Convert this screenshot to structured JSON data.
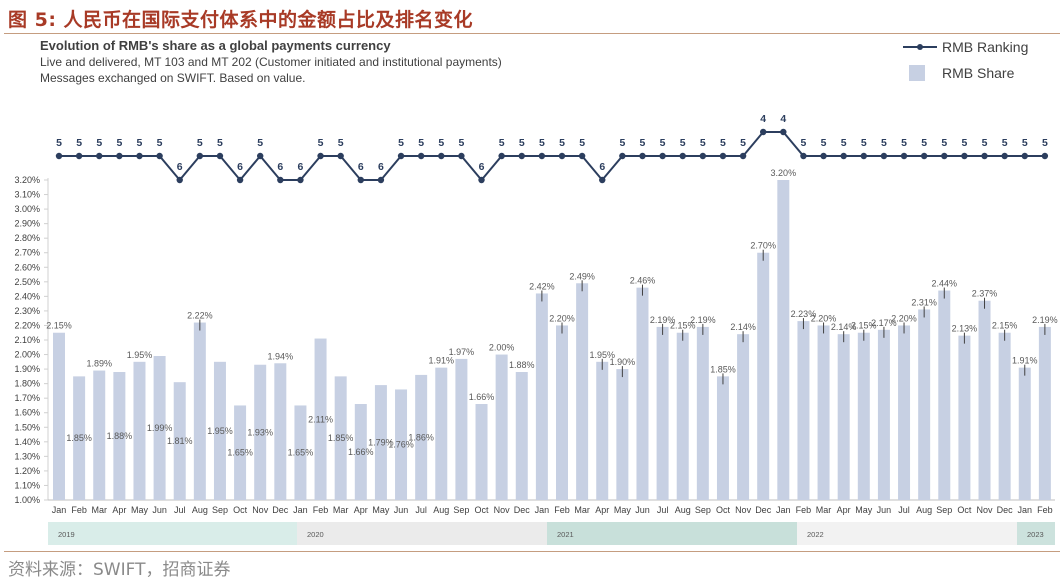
{
  "header": {
    "caption": "图 5: 人民币在国际支付体系中的金额占比及排名变化",
    "color": "#a83a26"
  },
  "chart_data": {
    "type": "bar",
    "title": "Evolution of RMB's share as a global payments currency",
    "subtitle": [
      "Live and delivered, MT 103 and MT 202 (Customer initiated and institutional payments)",
      "Messages exchanged on SWIFT. Based on value."
    ],
    "categories": [
      "Jan",
      "Feb",
      "Mar",
      "Apr",
      "May",
      "Jun",
      "Jul",
      "Aug",
      "Sep",
      "Oct",
      "Nov",
      "Dec",
      "Jan",
      "Feb",
      "Mar",
      "Apr",
      "May",
      "Jun",
      "Jul",
      "Aug",
      "Sep",
      "Oct",
      "Nov",
      "Dec",
      "Jan",
      "Feb",
      "Mar",
      "Apr",
      "May",
      "Jun",
      "Jul",
      "Aug",
      "Sep",
      "Oct",
      "Nov",
      "Dec",
      "Jan",
      "Feb",
      "Mar",
      "Apr",
      "May",
      "Jun",
      "Jul",
      "Aug",
      "Sep",
      "Oct",
      "Nov",
      "Dec",
      "Jan",
      "Feb"
    ],
    "years": [
      {
        "label": "2019",
        "color": "#d9ede9"
      },
      {
        "label": "2020",
        "color": "#ebebeb"
      },
      {
        "label": "2021",
        "color": "#c8e0da"
      },
      {
        "label": "2022",
        "color": "#f2f2f2"
      },
      {
        "label": "2023",
        "color": "#cce2dd"
      }
    ],
    "yticks": [
      "1.00%",
      "1.10%",
      "1.20%",
      "1.30%",
      "1.40%",
      "1.50%",
      "1.60%",
      "1.70%",
      "1.80%",
      "1.90%",
      "2.00%",
      "2.10%",
      "2.20%",
      "2.30%",
      "2.40%",
      "2.50%",
      "2.60%",
      "2.70%",
      "2.80%",
      "2.90%",
      "3.00%",
      "3.10%",
      "3.20%"
    ],
    "ylim": [
      1.0,
      3.2
    ],
    "grid": false,
    "legend": "top-right",
    "series": [
      {
        "name": "RMB Share",
        "type": "bar",
        "color": "#c7d0e3",
        "values": [
          2.15,
          1.85,
          1.89,
          1.88,
          1.95,
          1.99,
          1.81,
          2.22,
          1.95,
          1.65,
          1.93,
          1.94,
          1.65,
          2.11,
          1.85,
          1.66,
          1.79,
          1.76,
          1.86,
          1.91,
          1.97,
          1.66,
          2.0,
          1.88,
          2.42,
          2.2,
          2.49,
          1.95,
          1.9,
          2.46,
          2.19,
          2.15,
          2.19,
          1.85,
          2.14,
          2.7,
          3.2,
          2.23,
          2.2,
          2.14,
          2.15,
          2.17,
          2.2,
          2.31,
          2.44,
          2.13,
          2.37,
          2.15,
          1.91,
          2.19
        ]
      },
      {
        "name": "RMB Ranking",
        "type": "line",
        "color": "#2c3e5e",
        "values": [
          5,
          5,
          5,
          5,
          5,
          5,
          6,
          5,
          5,
          6,
          5,
          6,
          6,
          5,
          5,
          6,
          6,
          5,
          5,
          5,
          5,
          6,
          5,
          5,
          5,
          5,
          5,
          6,
          5,
          5,
          5,
          5,
          5,
          5,
          5,
          4,
          4,
          5,
          5,
          5,
          5,
          5,
          5,
          5,
          5,
          5,
          5,
          5,
          5,
          5
        ]
      }
    ]
  },
  "footer": {
    "source": "资料来源：SWIFT，招商证券"
  }
}
